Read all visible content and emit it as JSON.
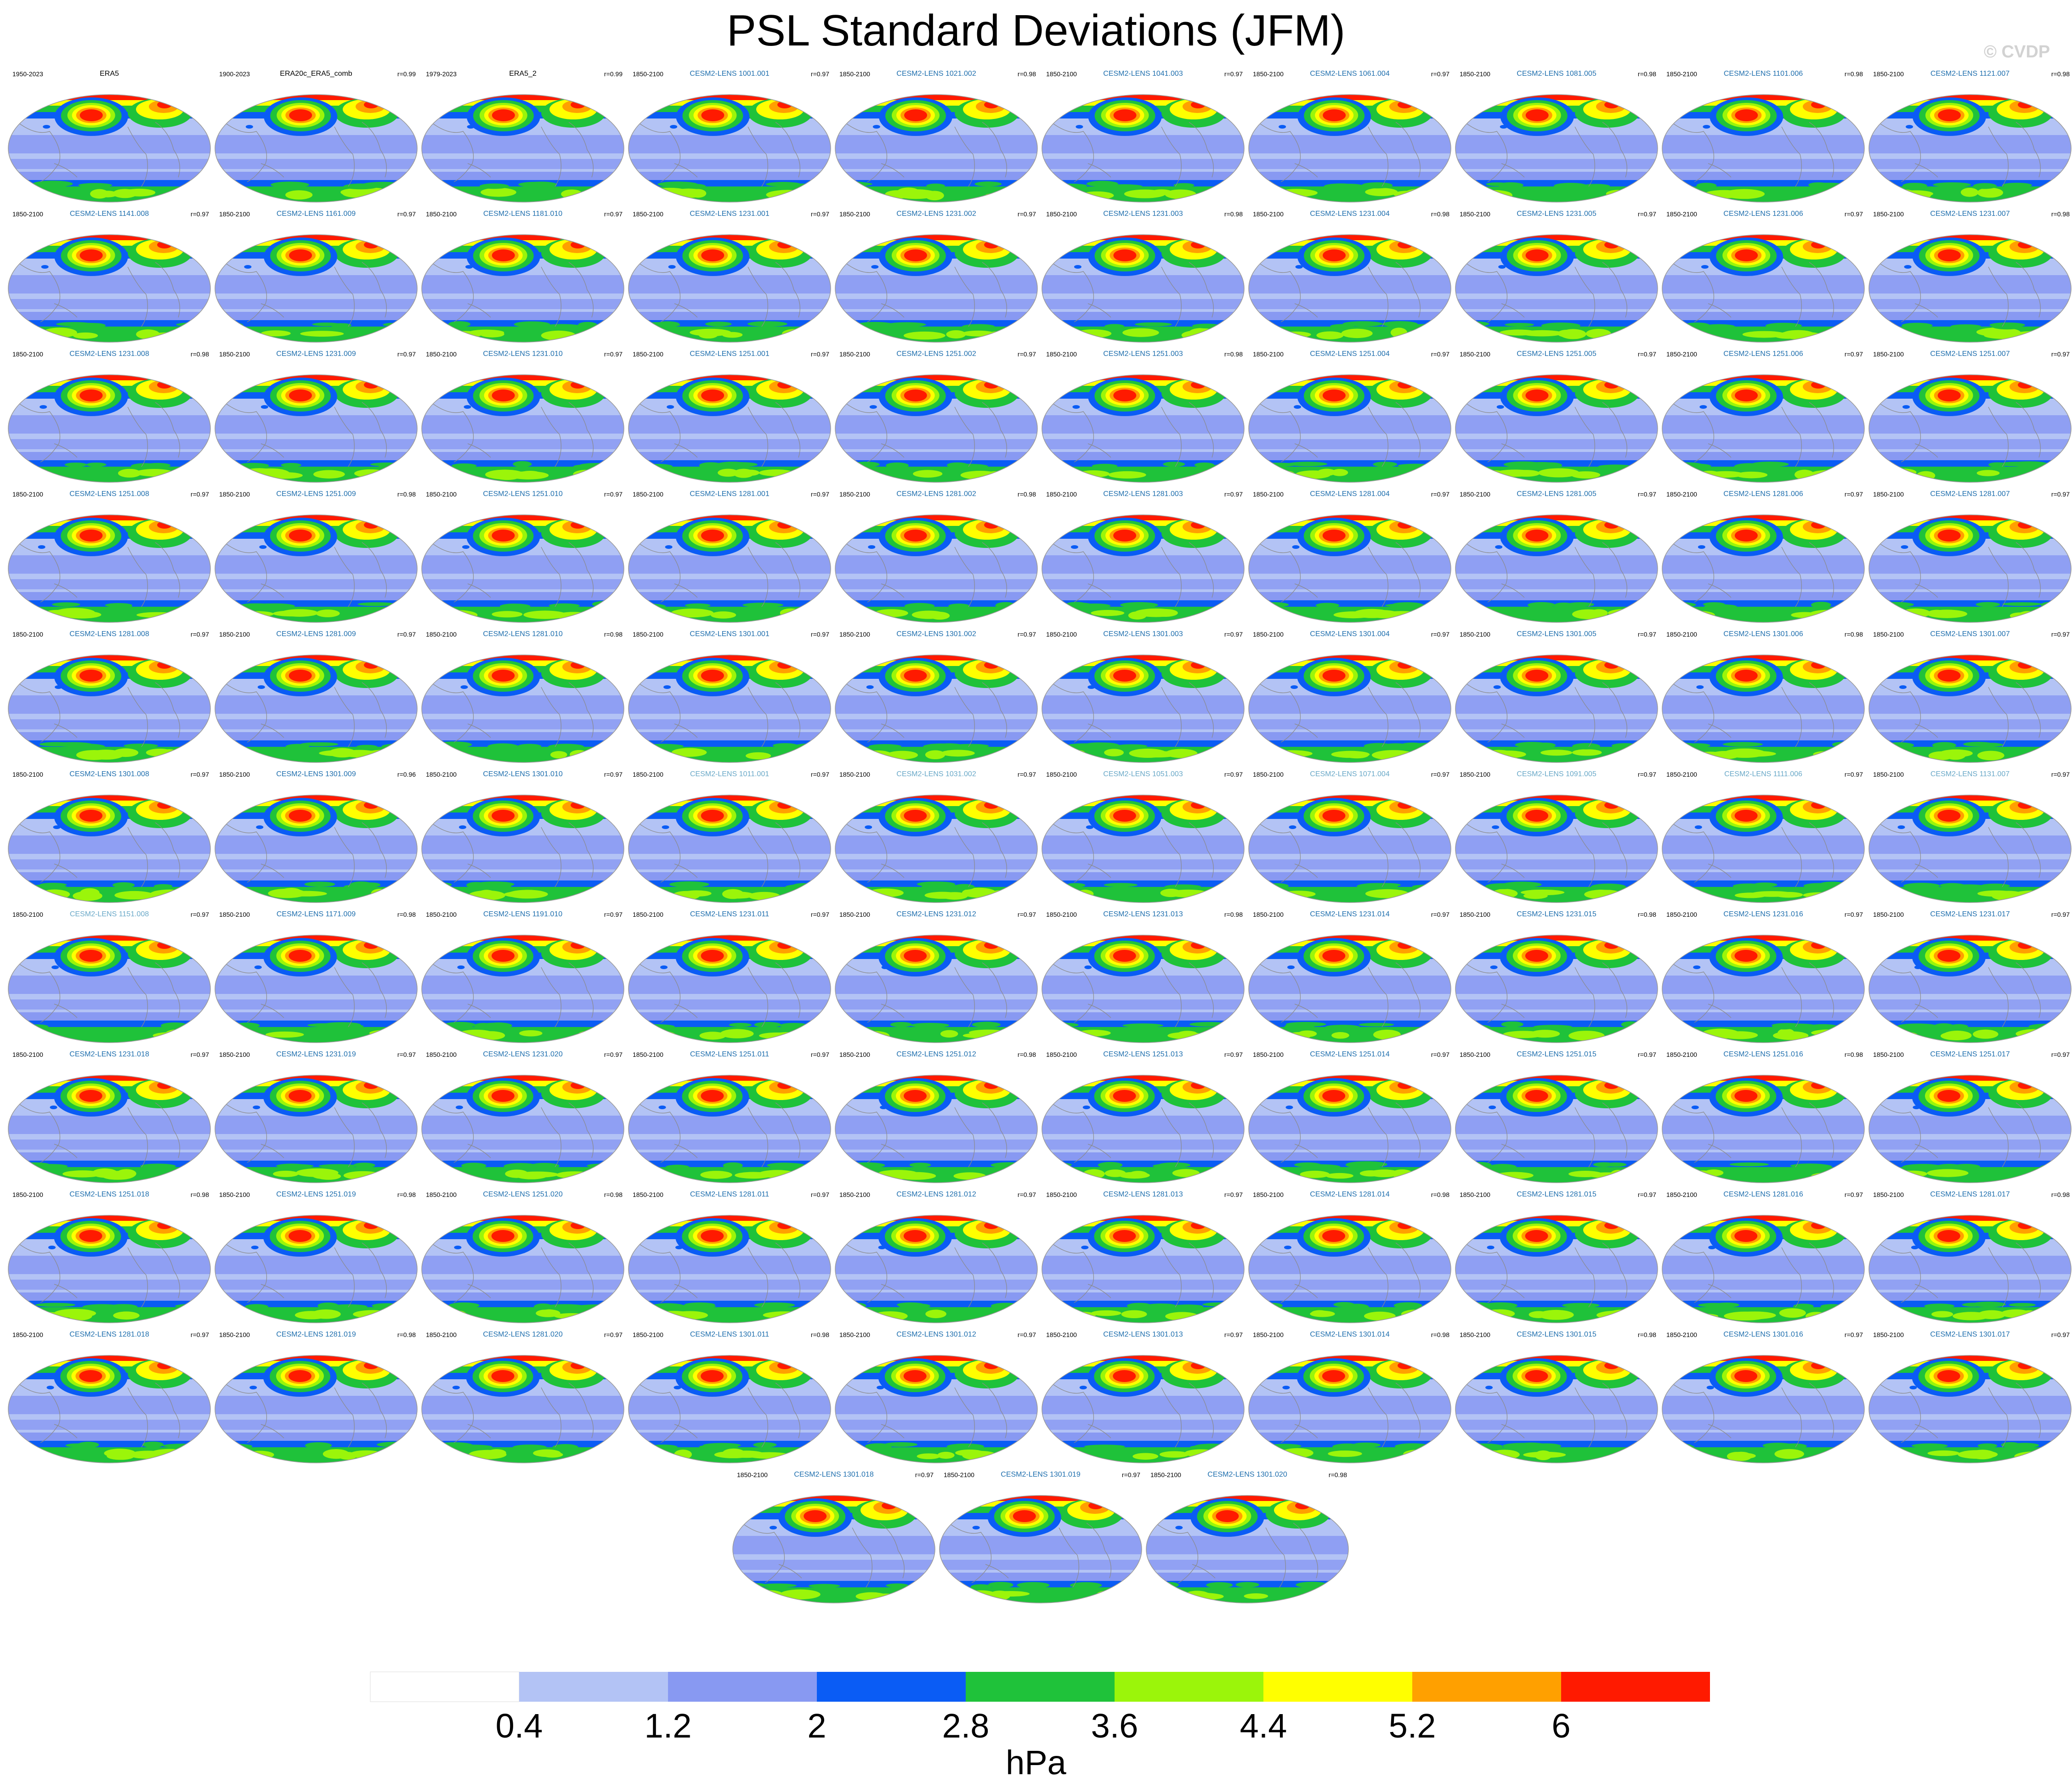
{
  "chart_data": {
    "type": "map_panels",
    "title": "PSL Standard Deviations (JFM)",
    "watermark": "© CVDP",
    "units": "hPa",
    "colorbar": {
      "levels": [
        0.4,
        1.2,
        2,
        2.8,
        3.6,
        4.4,
        5.2,
        6
      ],
      "colors": [
        "#ffffff",
        "#b3c3f5",
        "#8899f2",
        "#0a5cf5",
        "#1fc23a",
        "#9bf50a",
        "#ffff00",
        "#ffa000",
        "#ff1a00"
      ]
    },
    "panels": [
      {
        "name": "ERA5",
        "period": "1950-2023",
        "r": ""
      },
      {
        "name": "ERA20c_ERA5_comb",
        "period": "1900-2023",
        "r": "r=0.99"
      },
      {
        "name": "ERA5_2",
        "period": "1979-2023",
        "r": "r=0.99"
      },
      {
        "name": "CESM2-LENS 1001.001",
        "period": "1850-2100",
        "r": "r=0.97"
      },
      {
        "name": "CESM2-LENS 1021.002",
        "period": "1850-2100",
        "r": "r=0.98"
      },
      {
        "name": "CESM2-LENS 1041.003",
        "period": "1850-2100",
        "r": "r=0.97"
      },
      {
        "name": "CESM2-LENS 1061.004",
        "period": "1850-2100",
        "r": "r=0.97"
      },
      {
        "name": "CESM2-LENS 1081.005",
        "period": "1850-2100",
        "r": "r=0.98"
      },
      {
        "name": "CESM2-LENS 1101.006",
        "period": "1850-2100",
        "r": "r=0.98"
      },
      {
        "name": "CESM2-LENS 1121.007",
        "period": "1850-2100",
        "r": "r=0.98"
      },
      {
        "name": "CESM2-LENS 1141.008",
        "period": "1850-2100",
        "r": "r=0.97"
      },
      {
        "name": "CESM2-LENS 1161.009",
        "period": "1850-2100",
        "r": "r=0.97"
      },
      {
        "name": "CESM2-LENS 1181.010",
        "period": "1850-2100",
        "r": "r=0.97"
      },
      {
        "name": "CESM2-LENS 1231.001",
        "period": "1850-2100",
        "r": "r=0.97"
      },
      {
        "name": "CESM2-LENS 1231.002",
        "period": "1850-2100",
        "r": "r=0.97"
      },
      {
        "name": "CESM2-LENS 1231.003",
        "period": "1850-2100",
        "r": "r=0.98"
      },
      {
        "name": "CESM2-LENS 1231.004",
        "period": "1850-2100",
        "r": "r=0.98"
      },
      {
        "name": "CESM2-LENS 1231.005",
        "period": "1850-2100",
        "r": "r=0.97"
      },
      {
        "name": "CESM2-LENS 1231.006",
        "period": "1850-2100",
        "r": "r=0.97"
      },
      {
        "name": "CESM2-LENS 1231.007",
        "period": "1850-2100",
        "r": "r=0.98"
      },
      {
        "name": "CESM2-LENS 1231.008",
        "period": "1850-2100",
        "r": "r=0.98"
      },
      {
        "name": "CESM2-LENS 1231.009",
        "period": "1850-2100",
        "r": "r=0.97"
      },
      {
        "name": "CESM2-LENS 1231.010",
        "period": "1850-2100",
        "r": "r=0.97"
      },
      {
        "name": "CESM2-LENS 1251.001",
        "period": "1850-2100",
        "r": "r=0.97"
      },
      {
        "name": "CESM2-LENS 1251.002",
        "period": "1850-2100",
        "r": "r=0.97"
      },
      {
        "name": "CESM2-LENS 1251.003",
        "period": "1850-2100",
        "r": "r=0.98"
      },
      {
        "name": "CESM2-LENS 1251.004",
        "period": "1850-2100",
        "r": "r=0.97"
      },
      {
        "name": "CESM2-LENS 1251.005",
        "period": "1850-2100",
        "r": "r=0.97"
      },
      {
        "name": "CESM2-LENS 1251.006",
        "period": "1850-2100",
        "r": "r=0.97"
      },
      {
        "name": "CESM2-LENS 1251.007",
        "period": "1850-2100",
        "r": "r=0.97"
      },
      {
        "name": "CESM2-LENS 1251.008",
        "period": "1850-2100",
        "r": "r=0.97"
      },
      {
        "name": "CESM2-LENS 1251.009",
        "period": "1850-2100",
        "r": "r=0.98"
      },
      {
        "name": "CESM2-LENS 1251.010",
        "period": "1850-2100",
        "r": "r=0.97"
      },
      {
        "name": "CESM2-LENS 1281.001",
        "period": "1850-2100",
        "r": "r=0.97"
      },
      {
        "name": "CESM2-LENS 1281.002",
        "period": "1850-2100",
        "r": "r=0.98"
      },
      {
        "name": "CESM2-LENS 1281.003",
        "period": "1850-2100",
        "r": "r=0.97"
      },
      {
        "name": "CESM2-LENS 1281.004",
        "period": "1850-2100",
        "r": "r=0.97"
      },
      {
        "name": "CESM2-LENS 1281.005",
        "period": "1850-2100",
        "r": "r=0.97"
      },
      {
        "name": "CESM2-LENS 1281.006",
        "period": "1850-2100",
        "r": "r=0.97"
      },
      {
        "name": "CESM2-LENS 1281.007",
        "period": "1850-2100",
        "r": "r=0.97"
      },
      {
        "name": "CESM2-LENS 1281.008",
        "period": "1850-2100",
        "r": "r=0.97"
      },
      {
        "name": "CESM2-LENS 1281.009",
        "period": "1850-2100",
        "r": "r=0.97"
      },
      {
        "name": "CESM2-LENS 1281.010",
        "period": "1850-2100",
        "r": "r=0.98"
      },
      {
        "name": "CESM2-LENS 1301.001",
        "period": "1850-2100",
        "r": "r=0.97"
      },
      {
        "name": "CESM2-LENS 1301.002",
        "period": "1850-2100",
        "r": "r=0.97"
      },
      {
        "name": "CESM2-LENS 1301.003",
        "period": "1850-2100",
        "r": "r=0.97"
      },
      {
        "name": "CESM2-LENS 1301.004",
        "period": "1850-2100",
        "r": "r=0.97"
      },
      {
        "name": "CESM2-LENS 1301.005",
        "period": "1850-2100",
        "r": "r=0.97"
      },
      {
        "name": "CESM2-LENS 1301.006",
        "period": "1850-2100",
        "r": "r=0.98"
      },
      {
        "name": "CESM2-LENS 1301.007",
        "period": "1850-2100",
        "r": "r=0.97"
      },
      {
        "name": "CESM2-LENS 1301.008",
        "period": "1850-2100",
        "r": "r=0.97"
      },
      {
        "name": "CESM2-LENS 1301.009",
        "period": "1850-2100",
        "r": "r=0.96"
      },
      {
        "name": "CESM2-LENS 1301.010",
        "period": "1850-2100",
        "r": "r=0.97"
      },
      {
        "name": "CESM2-LENS 1011.001",
        "period": "1850-2100",
        "r": "r=0.97"
      },
      {
        "name": "CESM2-LENS 1031.002",
        "period": "1850-2100",
        "r": "r=0.97"
      },
      {
        "name": "CESM2-LENS 1051.003",
        "period": "1850-2100",
        "r": "r=0.97"
      },
      {
        "name": "CESM2-LENS 1071.004",
        "period": "1850-2100",
        "r": "r=0.97"
      },
      {
        "name": "CESM2-LENS 1091.005",
        "period": "1850-2100",
        "r": "r=0.97"
      },
      {
        "name": "CESM2-LENS 1111.006",
        "period": "1850-2100",
        "r": "r=0.97"
      },
      {
        "name": "CESM2-LENS 1131.007",
        "period": "1850-2100",
        "r": "r=0.97"
      },
      {
        "name": "CESM2-LENS 1151.008",
        "period": "1850-2100",
        "r": "r=0.97"
      },
      {
        "name": "CESM2-LENS 1171.009",
        "period": "1850-2100",
        "r": "r=0.98"
      },
      {
        "name": "CESM2-LENS 1191.010",
        "period": "1850-2100",
        "r": "r=0.97"
      },
      {
        "name": "CESM2-LENS 1231.011",
        "period": "1850-2100",
        "r": "r=0.97"
      },
      {
        "name": "CESM2-LENS 1231.012",
        "period": "1850-2100",
        "r": "r=0.97"
      },
      {
        "name": "CESM2-LENS 1231.013",
        "period": "1850-2100",
        "r": "r=0.98"
      },
      {
        "name": "CESM2-LENS 1231.014",
        "period": "1850-2100",
        "r": "r=0.97"
      },
      {
        "name": "CESM2-LENS 1231.015",
        "period": "1850-2100",
        "r": "r=0.98"
      },
      {
        "name": "CESM2-LENS 1231.016",
        "period": "1850-2100",
        "r": "r=0.97"
      },
      {
        "name": "CESM2-LENS 1231.017",
        "period": "1850-2100",
        "r": "r=0.97"
      },
      {
        "name": "CESM2-LENS 1231.018",
        "period": "1850-2100",
        "r": "r=0.97"
      },
      {
        "name": "CESM2-LENS 1231.019",
        "period": "1850-2100",
        "r": "r=0.97"
      },
      {
        "name": "CESM2-LENS 1231.020",
        "period": "1850-2100",
        "r": "r=0.97"
      },
      {
        "name": "CESM2-LENS 1251.011",
        "period": "1850-2100",
        "r": "r=0.97"
      },
      {
        "name": "CESM2-LENS 1251.012",
        "period": "1850-2100",
        "r": "r=0.98"
      },
      {
        "name": "CESM2-LENS 1251.013",
        "period": "1850-2100",
        "r": "r=0.97"
      },
      {
        "name": "CESM2-LENS 1251.014",
        "period": "1850-2100",
        "r": "r=0.97"
      },
      {
        "name": "CESM2-LENS 1251.015",
        "period": "1850-2100",
        "r": "r=0.97"
      },
      {
        "name": "CESM2-LENS 1251.016",
        "period": "1850-2100",
        "r": "r=0.98"
      },
      {
        "name": "CESM2-LENS 1251.017",
        "period": "1850-2100",
        "r": "r=0.97"
      },
      {
        "name": "CESM2-LENS 1251.018",
        "period": "1850-2100",
        "r": "r=0.98"
      },
      {
        "name": "CESM2-LENS 1251.019",
        "period": "1850-2100",
        "r": "r=0.98"
      },
      {
        "name": "CESM2-LENS 1251.020",
        "period": "1850-2100",
        "r": "r=0.98"
      },
      {
        "name": "CESM2-LENS 1281.011",
        "period": "1850-2100",
        "r": "r=0.97"
      },
      {
        "name": "CESM2-LENS 1281.012",
        "period": "1850-2100",
        "r": "r=0.97"
      },
      {
        "name": "CESM2-LENS 1281.013",
        "period": "1850-2100",
        "r": "r=0.97"
      },
      {
        "name": "CESM2-LENS 1281.014",
        "period": "1850-2100",
        "r": "r=0.98"
      },
      {
        "name": "CESM2-LENS 1281.015",
        "period": "1850-2100",
        "r": "r=0.97"
      },
      {
        "name": "CESM2-LENS 1281.016",
        "period": "1850-2100",
        "r": "r=0.97"
      },
      {
        "name": "CESM2-LENS 1281.017",
        "period": "1850-2100",
        "r": "r=0.98"
      },
      {
        "name": "CESM2-LENS 1281.018",
        "period": "1850-2100",
        "r": "r=0.97"
      },
      {
        "name": "CESM2-LENS 1281.019",
        "period": "1850-2100",
        "r": "r=0.98"
      },
      {
        "name": "CESM2-LENS 1281.020",
        "period": "1850-2100",
        "r": "r=0.97"
      },
      {
        "name": "CESM2-LENS 1301.011",
        "period": "1850-2100",
        "r": "r=0.98"
      },
      {
        "name": "CESM2-LENS 1301.012",
        "period": "1850-2100",
        "r": "r=0.97"
      },
      {
        "name": "CESM2-LENS 1301.013",
        "period": "1850-2100",
        "r": "r=0.97"
      },
      {
        "name": "CESM2-LENS 1301.014",
        "period": "1850-2100",
        "r": "r=0.98"
      },
      {
        "name": "CESM2-LENS 1301.015",
        "period": "1850-2100",
        "r": "r=0.98"
      },
      {
        "name": "CESM2-LENS 1301.016",
        "period": "1850-2100",
        "r": "r=0.97"
      },
      {
        "name": "CESM2-LENS 1301.017",
        "period": "1850-2100",
        "r": "r=0.97"
      },
      {
        "name": "CESM2-LENS 1301.018",
        "period": "1850-2100",
        "r": "r=0.97"
      },
      {
        "name": "CESM2-LENS 1301.019",
        "period": "1850-2100",
        "r": "r=0.97"
      },
      {
        "name": "CESM2-LENS 1301.020",
        "period": "1850-2100",
        "r": "r=0.98"
      }
    ]
  }
}
